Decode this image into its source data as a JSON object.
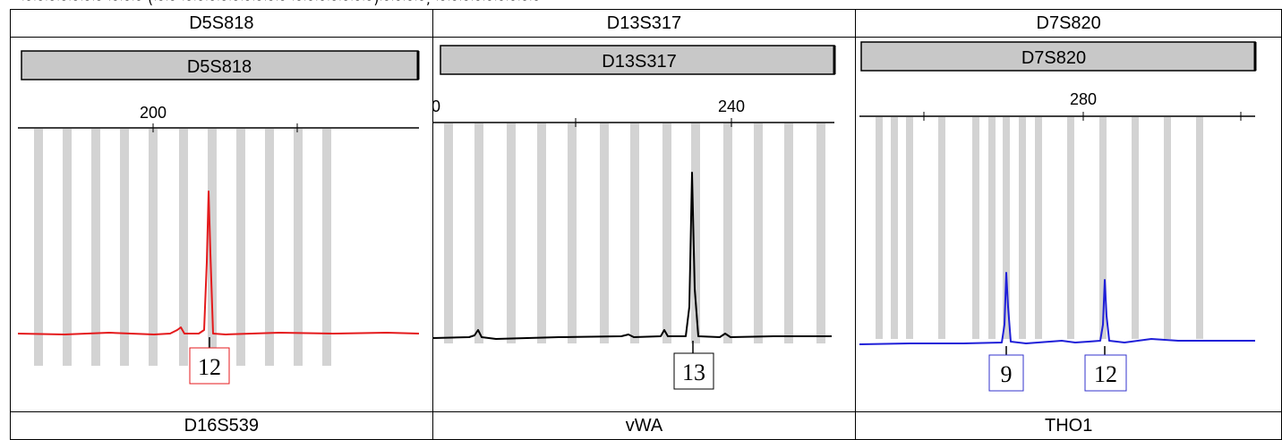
{
  "page_caption": "~~~~~~~ ~~~ (~~ ~~~~~~~~~ ~~~~~~~)~~~~, ~~~~~~~~~",
  "chart_data": [
    {
      "type": "line",
      "top_label": "D5S818",
      "panel_name": "D5S818",
      "bottom_label": "D16S539",
      "ticks": [
        "200"
      ],
      "allele_labels": [
        "12"
      ],
      "line_color": "#e41a1c",
      "box_color": "#e41a1c"
    },
    {
      "type": "line",
      "top_label": "D13S317",
      "panel_name": "D13S317",
      "bottom_label": "vWA",
      "ticks": [
        "0",
        "240"
      ],
      "allele_labels": [
        "13"
      ],
      "line_color": "#000000",
      "box_color": "#000000"
    },
    {
      "type": "line",
      "top_label": "D7S820",
      "panel_name": "D7S820",
      "bottom_label": "THO1",
      "ticks": [
        "280"
      ],
      "allele_labels": [
        "9",
        "12"
      ],
      "line_color": "#1f1fd8",
      "box_color": "#3333cc"
    }
  ]
}
